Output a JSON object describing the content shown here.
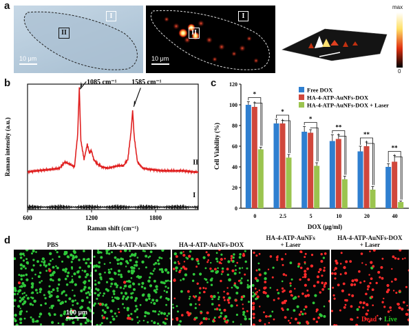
{
  "panel_a": {
    "letter": "a",
    "roi_1": "I",
    "roi_2": "II",
    "scale_label_1": "10 μm",
    "scale_label_2": "10 μm",
    "colorbar_max": "max",
    "colorbar_min": "0"
  },
  "panel_b": {
    "letter": "b",
    "peak_1": "1085 cm⁻¹",
    "peak_2": "1585 cm⁻¹",
    "curve_II_label": "II",
    "curve_I_label": "I"
  },
  "panel_c": {
    "letter": "c"
  },
  "panel_d": {
    "letter": "d",
    "labels": [
      "PBS",
      "HA-4-ATP-AuNFs",
      "HA-4-ATP-AuNFs-DOX",
      "HA-4-ATP-AuNFs\n+ Laser",
      "HA-4-ATP-AuNFs-DOX\n+ Laser"
    ],
    "scale_label": "100 μm",
    "dead_word": "Dead",
    "plus": " + ",
    "live_word": "Live",
    "colors": {
      "dead": "#ff2020",
      "live": "#22cc22"
    }
  },
  "chart_data": [
    {
      "type": "line",
      "xlabel": "Raman shift (cm⁻¹)",
      "ylabel": "Raman intensity (a.u.)",
      "xlim": [
        600,
        2200
      ],
      "xticks": [
        600,
        1200,
        1800
      ],
      "series": [
        {
          "name": "II",
          "color": "#e02020",
          "x": [
            600,
            700,
            800,
            900,
            950,
            1000,
            1040,
            1070,
            1085,
            1100,
            1130,
            1160,
            1180,
            1200,
            1220,
            1260,
            1300,
            1350,
            1400,
            1450,
            1500,
            1540,
            1570,
            1585,
            1600,
            1630,
            1680,
            1750,
            1850,
            1950,
            2050,
            2150,
            2200
          ],
          "y": [
            0.3,
            0.31,
            0.32,
            0.33,
            0.38,
            0.36,
            0.34,
            0.6,
            0.97,
            0.55,
            0.4,
            0.52,
            0.45,
            0.47,
            0.4,
            0.36,
            0.34,
            0.33,
            0.34,
            0.35,
            0.35,
            0.4,
            0.62,
            0.79,
            0.58,
            0.38,
            0.33,
            0.32,
            0.31,
            0.31,
            0.31,
            0.3,
            0.3
          ]
        },
        {
          "name": "I",
          "color": "#111111",
          "x": [
            600,
            2200
          ],
          "y": [
            0.02,
            0.02
          ]
        }
      ]
    },
    {
      "type": "bar",
      "ylabel": "Cell Viability (%)",
      "xlabel": "DOX (μg/ml)",
      "ylim": [
        0,
        120
      ],
      "yticks": [
        0,
        20,
        40,
        60,
        80,
        100,
        120
      ],
      "categories": [
        "0",
        "2.5",
        "5",
        "10",
        "20",
        "40"
      ],
      "legend": "top-right",
      "series": [
        {
          "name": "Free DOX",
          "color": "#2f7fd0",
          "values": [
            100,
            82,
            74,
            65,
            55,
            40
          ],
          "errors": [
            3,
            4,
            5,
            6,
            5,
            3
          ]
        },
        {
          "name": "HA-4-ATP-AuNFs-DOX",
          "color": "#d0473c",
          "values": [
            98,
            82,
            73,
            67,
            60,
            45
          ],
          "errors": [
            4,
            3,
            3,
            4,
            4,
            6
          ]
        },
        {
          "name": "HA-4-ATP-AuNFs-DOX + Laser",
          "color": "#9bc44f",
          "values": [
            57,
            49,
            41,
            28,
            18,
            6
          ],
          "errors": [
            2,
            3,
            3,
            3,
            3,
            1
          ]
        }
      ],
      "significance": [
        "*",
        "*",
        "*",
        "**",
        "**",
        "**"
      ]
    }
  ]
}
